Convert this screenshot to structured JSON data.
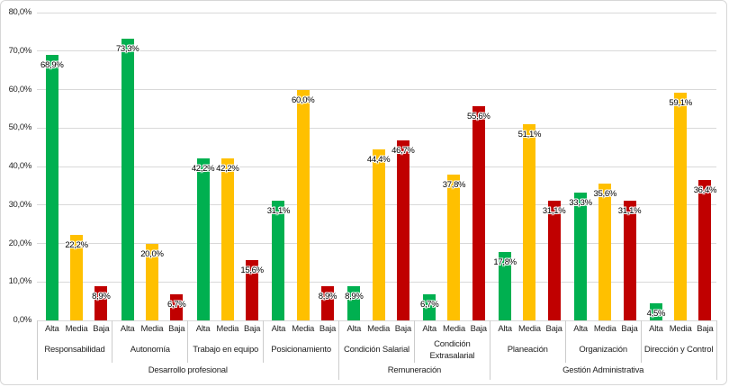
{
  "chart_data": {
    "type": "bar",
    "title": "",
    "xlabel": "",
    "ylabel": "",
    "ylim": [
      0,
      80
    ],
    "ytick_step": 10,
    "ytick_labels": [
      "0,0%",
      "10,0%",
      "20,0%",
      "30,0%",
      "40,0%",
      "50,0%",
      "60,0%",
      "70,0%",
      "80,0%"
    ],
    "grid": true,
    "legend_position": "none",
    "series_levels": [
      "Alta",
      "Media",
      "Baja"
    ],
    "series_colors": [
      "#00B050",
      "#FFC000",
      "#C00000"
    ],
    "supergroups": [
      {
        "label": "Desarrollo profesional",
        "categories": [
          {
            "label": "Responsabilidad",
            "values": [
              68.9,
              22.2,
              8.9
            ],
            "value_labels": [
              "68,9%",
              "22,2%",
              "8,9%"
            ]
          },
          {
            "label": "Autonomía",
            "values": [
              73.3,
              20.0,
              6.7
            ],
            "value_labels": [
              "73,3%",
              "20,0%",
              "6,7%"
            ]
          },
          {
            "label": "Trabajo en equipo",
            "values": [
              42.2,
              42.2,
              15.6
            ],
            "value_labels": [
              "42,2%",
              "42,2%",
              "15,6%"
            ]
          },
          {
            "label": "Posicionamiento",
            "values": [
              31.1,
              60.0,
              8.9
            ],
            "value_labels": [
              "31,1%",
              "60,0%",
              "8,9%"
            ]
          }
        ]
      },
      {
        "label": "Remuneración",
        "categories": [
          {
            "label": "Condición Salarial",
            "values": [
              8.9,
              44.4,
              46.7
            ],
            "value_labels": [
              "8,9%",
              "44,4%",
              "46,7%"
            ]
          },
          {
            "label": "Condición Extrasalarial",
            "values": [
              6.7,
              37.8,
              55.6
            ],
            "value_labels": [
              "6,7%",
              "37,8%",
              "55,6%"
            ]
          }
        ]
      },
      {
        "label": "Gestión Administrativa",
        "categories": [
          {
            "label": "Planeación",
            "values": [
              17.8,
              51.1,
              31.1
            ],
            "value_labels": [
              "17,8%",
              "51,1%",
              "31,1%"
            ]
          },
          {
            "label": "Organización",
            "values": [
              33.3,
              35.6,
              31.1
            ],
            "value_labels": [
              "33,3%",
              "35,6%",
              "31,1%"
            ]
          },
          {
            "label": "Dirección y Control",
            "values": [
              4.5,
              59.1,
              36.4
            ],
            "value_labels": [
              "4,5%",
              "59,1%",
              "36,4%"
            ]
          }
        ]
      }
    ]
  }
}
